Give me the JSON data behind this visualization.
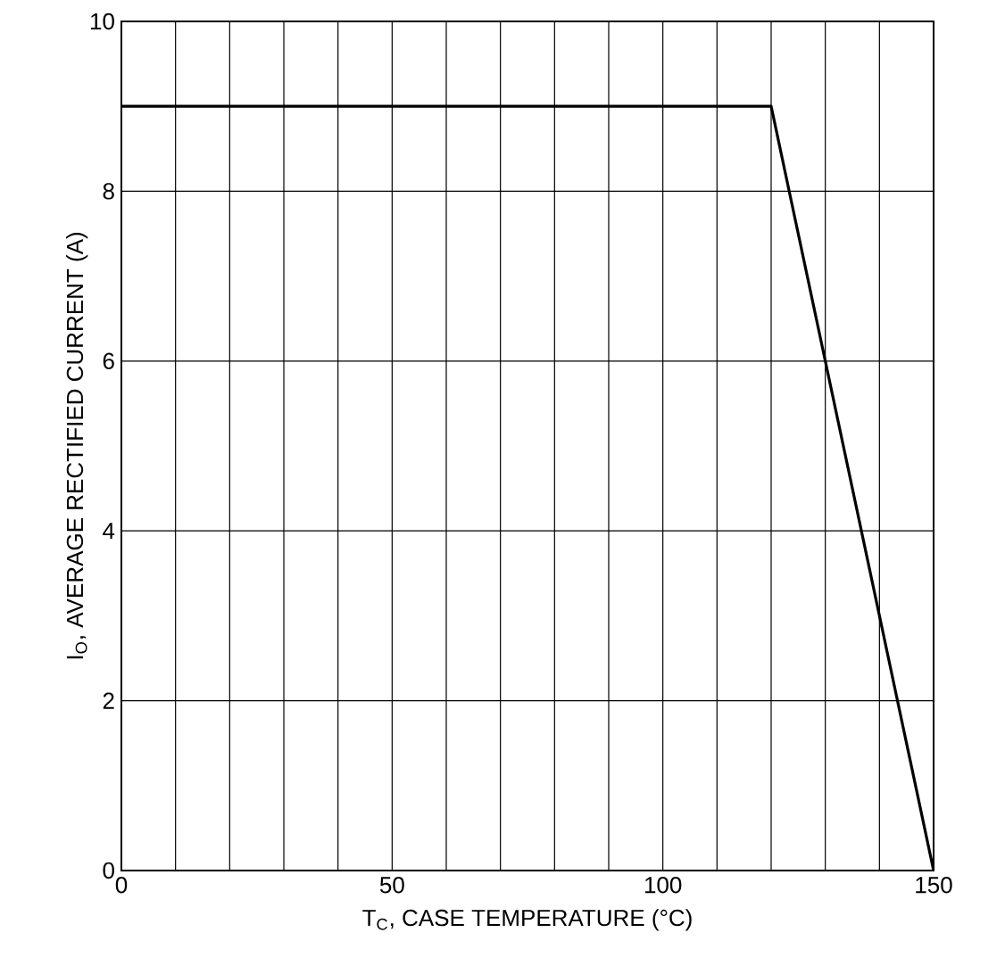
{
  "chart_data": {
    "type": "line",
    "xlabel": "T$_{C}$, CASE TEMPERATURE (°C)",
    "ylabel": "I$_{O}$, AVERAGE RECTIFIED CURRENT (A)",
    "x": [
      0,
      120,
      150
    ],
    "series": [
      {
        "color": "#000000",
        "values": [
          9,
          9,
          0
        ]
      }
    ],
    "xlim": [
      0,
      150
    ],
    "xticks": [
      0,
      {
        "value": 10,
        "label": null
      },
      {
        "value": 20,
        "label": null
      },
      {
        "value": 30,
        "label": null
      },
      {
        "value": 40,
        "label": null
      },
      50,
      {
        "value": 60,
        "label": null
      },
      {
        "value": 70,
        "label": null
      },
      {
        "value": 80,
        "label": null
      },
      {
        "value": 90,
        "label": null
      },
      100,
      {
        "value": 110,
        "label": null
      },
      {
        "value": 120,
        "label": null
      },
      {
        "value": 130,
        "label": null
      },
      {
        "value": 140,
        "label": null
      },
      150
    ],
    "ylim": [
      0,
      10
    ],
    "yticks": [
      0,
      2,
      4,
      6,
      8,
      10
    ],
    "grid": true,
    "marker": "none",
    "line_style": "solid"
  }
}
